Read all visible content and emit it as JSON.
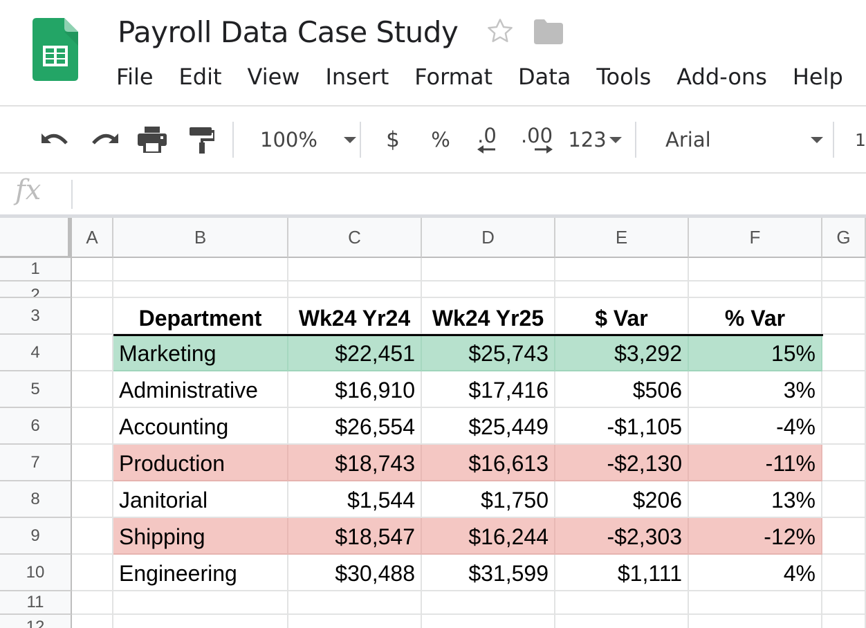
{
  "app": {
    "title": "Payroll Data Case Study",
    "logo_icon": "google-sheets-logo",
    "brand_color": "#0f9d58"
  },
  "menu": [
    "File",
    "Edit",
    "View",
    "Insert",
    "Format",
    "Data",
    "Tools",
    "Add-ons",
    "Help"
  ],
  "toolbar": {
    "undo_icon": "undo-icon",
    "redo_icon": "redo-icon",
    "print_icon": "print-icon",
    "paint_format_icon": "paint-format-icon",
    "zoom": "100%",
    "currency_label": "$",
    "percent_label": "%",
    "decrease_decimal_label": ".0",
    "increase_decimal_label": ".00",
    "more_formats_label": "123",
    "font": "Arial",
    "font_size_partial": "1"
  },
  "formula_bar": {
    "label": "fx",
    "value": ""
  },
  "grid": {
    "columns": [
      "A",
      "B",
      "C",
      "D",
      "E",
      "F",
      "G"
    ],
    "row_numbers": [
      "1",
      "2",
      "3",
      "4",
      "5",
      "6",
      "7",
      "8",
      "9",
      "10",
      "11",
      "12"
    ],
    "header_row": [
      "Department",
      "Wk24 Yr24",
      "Wk24 Yr25",
      "$ Var",
      "% Var"
    ],
    "rows": [
      {
        "department": "Marketing",
        "yr24": "$22,451",
        "yr25": "$25,743",
        "dollar_var": "$3,292",
        "pct_var": "15%",
        "highlight": "#b7e1cd"
      },
      {
        "department": "Administrative",
        "yr24": "$16,910",
        "yr25": "$17,416",
        "dollar_var": "$506",
        "pct_var": "3%",
        "highlight": ""
      },
      {
        "department": "Accounting",
        "yr24": "$26,554",
        "yr25": "$25,449",
        "dollar_var": "-$1,105",
        "pct_var": "-4%",
        "highlight": ""
      },
      {
        "department": "Production",
        "yr24": "$18,743",
        "yr25": "$16,613",
        "dollar_var": "-$2,130",
        "pct_var": "-11%",
        "highlight": "#f4c7c3"
      },
      {
        "department": "Janitorial",
        "yr24": "$1,544",
        "yr25": "$1,750",
        "dollar_var": "$206",
        "pct_var": "13%",
        "highlight": ""
      },
      {
        "department": "Shipping",
        "yr24": "$18,547",
        "yr25": "$16,244",
        "dollar_var": "-$2,303",
        "pct_var": "-12%",
        "highlight": "#f4c7c3"
      },
      {
        "department": "Engineering",
        "yr24": "$30,488",
        "yr25": "$31,599",
        "dollar_var": "$1,111",
        "pct_var": "4%",
        "highlight": ""
      }
    ]
  }
}
